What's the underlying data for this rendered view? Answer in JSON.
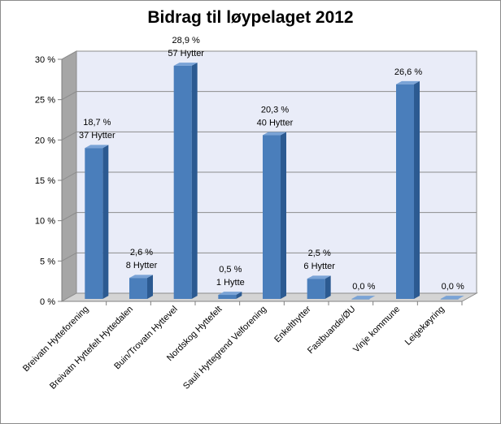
{
  "chart_data": {
    "type": "bar",
    "title": "Bidrag til løypelaget 2012",
    "xlabel": "",
    "ylabel": "",
    "ylim": [
      0,
      30
    ],
    "y_ticks": [
      "0 %",
      "5 %",
      "10 %",
      "15 %",
      "20 %",
      "25 %",
      "30 %"
    ],
    "grid": true,
    "legend": "none",
    "categories": [
      "Breivatn Hytteforening",
      "Breivatn Hyttefelt Hyttedalen",
      "Buin/Trovatn Hyttevel",
      "Nordskog Hyttefelt",
      "Sauli Hyttegrend Velforening",
      "Enkelthytter",
      "Fastbuande/ØU",
      "Vinje kommune",
      "Leigekøyring"
    ],
    "values": [
      18.7,
      2.6,
      28.9,
      0.5,
      20.3,
      2.5,
      0.0,
      26.6,
      0.0
    ],
    "value_labels": [
      "18,7 %",
      "2,6 %",
      "28,9 %",
      "0,5 %",
      "20,3 %",
      "2,5 %",
      "0,0 %",
      "26,6 %",
      "0,0 %"
    ],
    "count_labels": [
      "37 Hytter",
      "8 Hytter",
      "57 Hytter",
      "1 Hytte",
      "40 Hytter",
      "6 Hytter",
      "",
      "",
      ""
    ],
    "colors": {
      "bar_front": "#4a7ebb",
      "bar_side": "#2c5a91",
      "bar_top": "#7aa3d6",
      "plot_back": "#e9ecf8",
      "plot_left_wall": "#a6a6a6",
      "floor": "#d4d4d4",
      "grid": "#8c8c8c"
    }
  }
}
